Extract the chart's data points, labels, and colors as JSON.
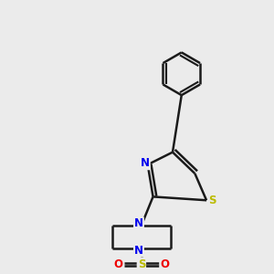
{
  "bg_color": "#ebebeb",
  "bond_color": "#1a1a1a",
  "N_color": "#0000ee",
  "S_thiazole_color": "#bbbb00",
  "S_sulfonyl_color": "#bbbb00",
  "O_color": "#ee0000",
  "line_width": 1.8,
  "figsize": [
    3.0,
    3.0
  ],
  "dpi": 100,
  "xlim": [
    0,
    10
  ],
  "ylim": [
    0,
    10
  ]
}
